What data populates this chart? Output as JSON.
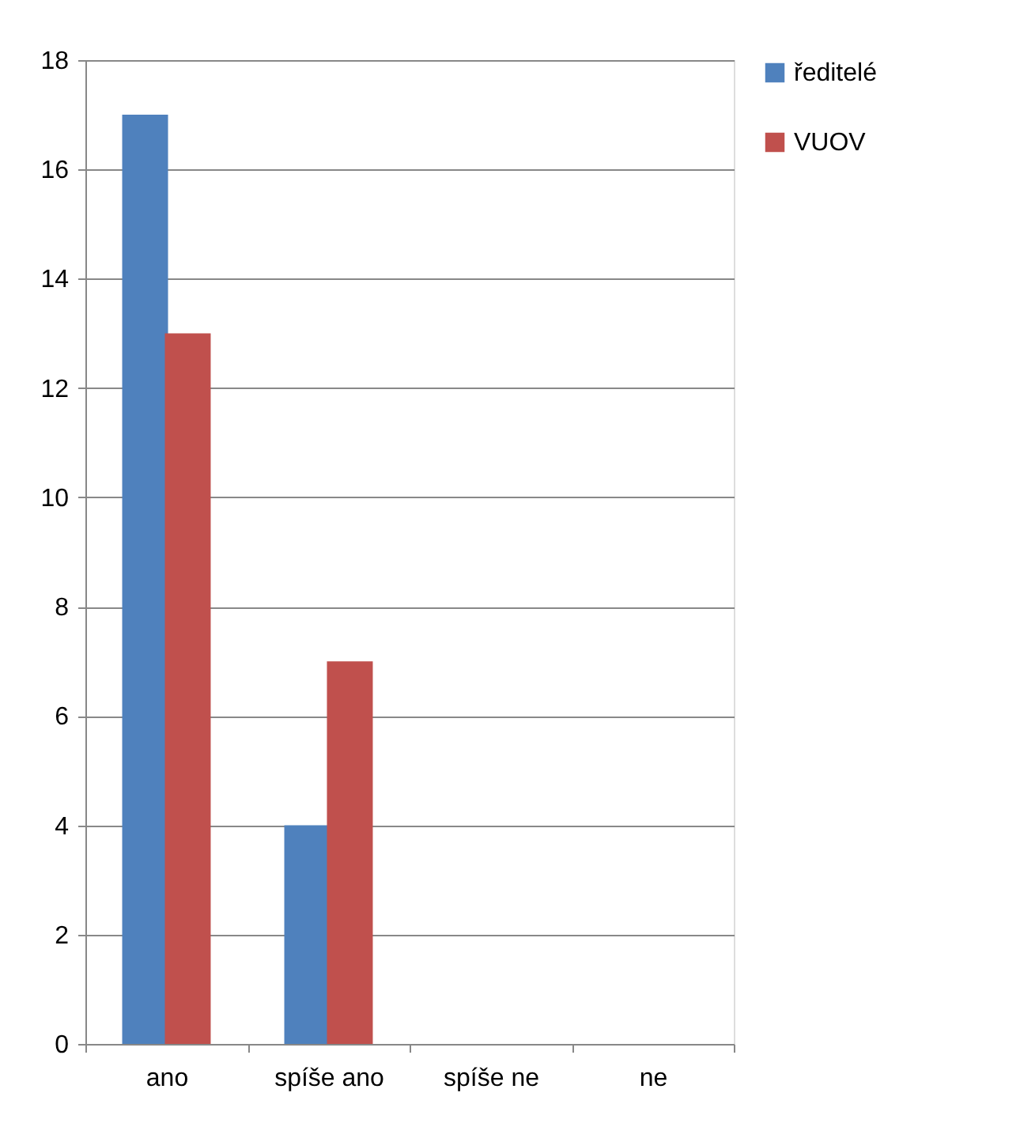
{
  "chart_data": {
    "type": "bar",
    "categories": [
      "ano",
      "spíše ano",
      "spíše ne",
      "ne"
    ],
    "series": [
      {
        "name": "ředitelé",
        "color": "#4f81bd",
        "values": [
          17,
          4,
          0,
          0
        ]
      },
      {
        "name": "VUOV",
        "color": "#c0504d",
        "values": [
          13,
          7,
          0,
          0
        ]
      }
    ],
    "ylim": [
      0,
      18
    ],
    "yticks": [
      0,
      2,
      4,
      6,
      8,
      10,
      12,
      14,
      16,
      18
    ],
    "grid": "y",
    "legend": "right"
  }
}
